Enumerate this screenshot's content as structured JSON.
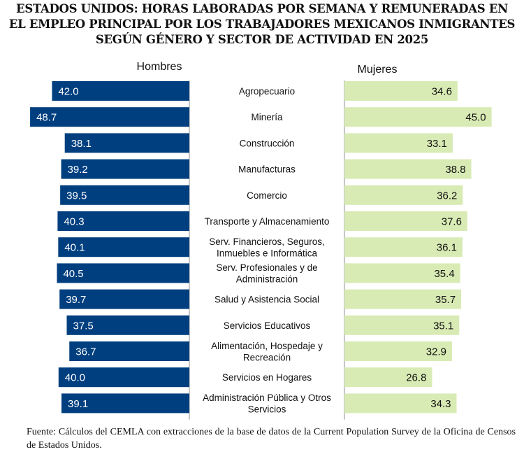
{
  "title_lines": [
    "ESTADOS UNIDOS: HORAS LABORADAS POR SEMANA Y REMUNERADAS EN",
    "EL EMPLEO PRINCIPAL POR LOS TRABAJADORES MEXICANOS INMIGRANTES",
    "SEGÚN GÉNERO Y SECTOR DE ACTIVIDAD EN 2025"
  ],
  "source_note": "Fuente: Cálculos del CEMLA con extracciones de la base de datos de la Current Population Survey de la Oficina de Censos de Estados Unidos.",
  "chart_data": {
    "type": "bar",
    "orientation": "horizontal",
    "layout": "butterfly",
    "title": "ESTADOS UNIDOS: HORAS LABORADAS POR SEMANA Y REMUNERADAS EN EL EMPLEO PRINCIPAL POR LOS TRABAJADORES MEXICANOS INMIGRANTES SEGÚN GÉNERO Y SECTOR DE ACTIVIDAD EN 2025",
    "categories": [
      [
        "Agropecuario"
      ],
      [
        "Minería"
      ],
      [
        "Construcción"
      ],
      [
        "Manufacturas"
      ],
      [
        "Comercio"
      ],
      [
        "Transporte y Almacenamiento"
      ],
      [
        "Serv. Financieros, Seguros,",
        "Inmuebles e Informática"
      ],
      [
        "Serv. Profesionales y de",
        "Administración"
      ],
      [
        "Salud y Asistencia Social"
      ],
      [
        "Servicios Educativos"
      ],
      [
        "Alimentación, Hospedaje y",
        "Recreación"
      ],
      [
        "Servicios en Hogares"
      ],
      [
        "Administración Pública y Otros",
        "Servicios"
      ]
    ],
    "series": [
      {
        "name": "Hombres",
        "color": "#003f7f",
        "label_color": "#ffffff",
        "values": [
          42.0,
          48.7,
          38.1,
          39.2,
          39.5,
          40.3,
          40.1,
          40.5,
          39.7,
          37.5,
          36.7,
          40.0,
          39.1
        ]
      },
      {
        "name": "Mujeres",
        "color": "#d9ebb5",
        "label_color": "#111111",
        "values": [
          34.6,
          45.0,
          33.1,
          38.8,
          36.2,
          37.6,
          36.1,
          35.4,
          35.7,
          35.1,
          32.9,
          26.8,
          34.3
        ]
      }
    ],
    "value_format": "0.0",
    "grid": false,
    "legend": "series names above each panel"
  }
}
